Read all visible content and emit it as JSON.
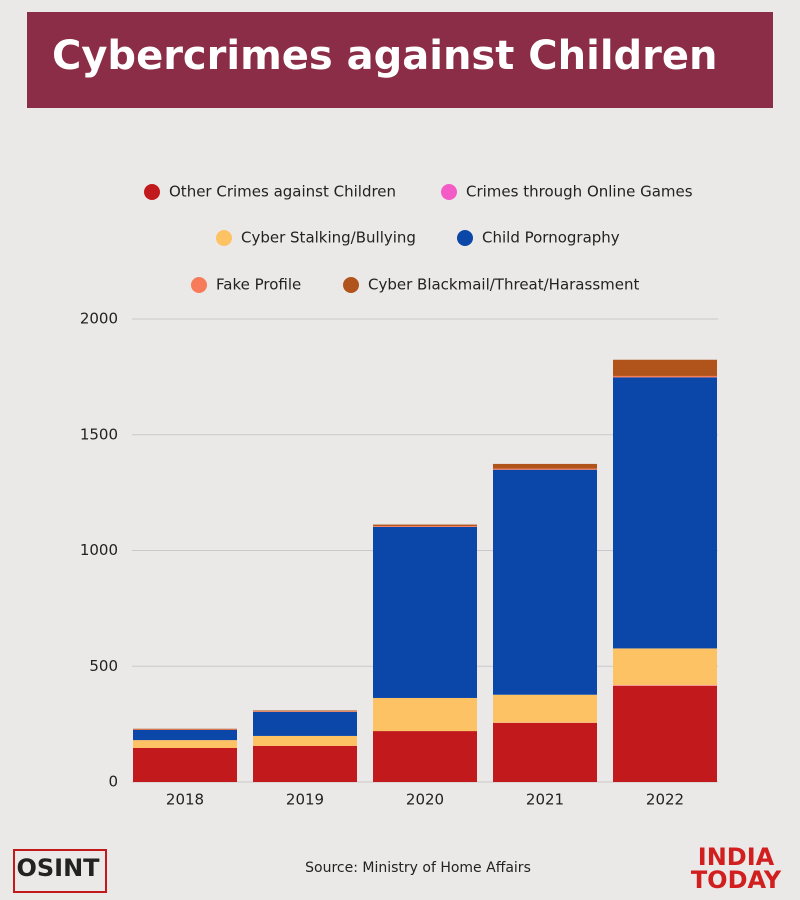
{
  "chart_data": {
    "type": "bar",
    "stacked": true,
    "title": "Cybercrimes against Children",
    "categories": [
      "2018",
      "2019",
      "2020",
      "2021",
      "2022"
    ],
    "series": [
      {
        "name": "Other Crimes against Children",
        "color": "#c21a1c",
        "values": [
          147,
          156,
          220,
          255,
          415
        ]
      },
      {
        "name": "Crimes through Online Games",
        "color": "#f25cc4",
        "values": [
          0,
          0,
          0,
          1,
          2
        ]
      },
      {
        "name": "Cyber Stalking/Bullying",
        "color": "#fdc264",
        "values": [
          34,
          43,
          143,
          121,
          160
        ]
      },
      {
        "name": "Child Pornography",
        "color": "#0b47a8",
        "values": [
          44,
          104,
          739,
          972,
          1171
        ]
      },
      {
        "name": "Fake Profile",
        "color": "#f77b5b",
        "values": [
          2,
          3,
          4,
          5,
          6
        ]
      },
      {
        "name": "Cyber Blackmail/Threat/Harassment",
        "color": "#b1541b",
        "values": [
          3,
          3,
          6,
          20,
          70
        ]
      }
    ],
    "ylim": [
      0,
      2000
    ],
    "yticks": [
      0,
      500,
      1000,
      1500,
      2000
    ],
    "grid": true,
    "source": "Source: Ministry of Home Affairs"
  },
  "branding": {
    "left": "OSINT",
    "right_top": "INDIA",
    "right_bottom": "TODAY"
  }
}
